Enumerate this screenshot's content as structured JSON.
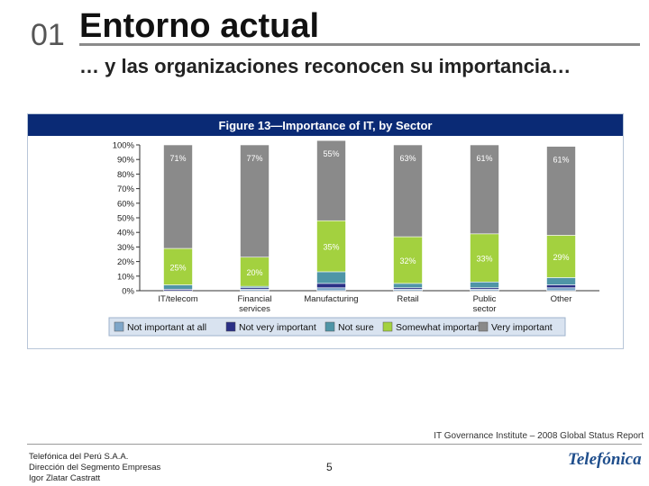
{
  "slide": {
    "number": "01",
    "title": "Entorno actual",
    "subtitle": "… y las organizaciones reconocen su importancia…"
  },
  "colors": {
    "not_important_at_all": "#7ea6c9",
    "not_very_important": "#2a2f86",
    "not_sure": "#4f95a7",
    "somewhat_important": "#a3d13f",
    "very_important": "#8a8a8a",
    "chart_header": "#0a2a75",
    "legend_bg": "#d9e3f0"
  },
  "chart_data": {
    "type": "bar",
    "stacked": true,
    "title": "Figure 13—Importance of IT, by Sector",
    "categories": [
      "IT/telecom",
      "Financial services",
      "Manufacturing",
      "Retail",
      "Public sector",
      "Other"
    ],
    "ylim": [
      0,
      100
    ],
    "y_ticks": [
      "0%",
      "10%",
      "20%",
      "30%",
      "40%",
      "50%",
      "60%",
      "70%",
      "80%",
      "90%",
      "100%"
    ],
    "grid": false,
    "legend": "bottom",
    "series": [
      {
        "name": "Not important at all",
        "values": [
          0,
          1,
          2,
          1,
          1,
          2
        ]
      },
      {
        "name": "Not very important",
        "values": [
          1,
          1,
          3,
          1,
          1,
          2
        ]
      },
      {
        "name": "Not sure",
        "values": [
          3,
          1,
          8,
          3,
          4,
          5
        ]
      },
      {
        "name": "Somewhat important",
        "values": [
          25,
          20,
          35,
          32,
          33,
          29
        ]
      },
      {
        "name": "Very important",
        "values": [
          71,
          77,
          55,
          63,
          61,
          61
        ]
      }
    ],
    "data_labels": {
      "Somewhat important": [
        "25%",
        "20%",
        "35%",
        "32%",
        "33%",
        "29%"
      ],
      "Very important": [
        "71%",
        "77%",
        "55%",
        "63%",
        "61%",
        "61%"
      ]
    }
  },
  "footer": {
    "source": "IT Governance Institute – 2008 Global Status Report",
    "org_line1": "Telefónica del Perú S.A.A.",
    "org_line2": "Dirección del Segmento Empresas",
    "org_line3": "Igor Zlatar Castratt",
    "page": "5",
    "logo_text": "Telefónica"
  }
}
